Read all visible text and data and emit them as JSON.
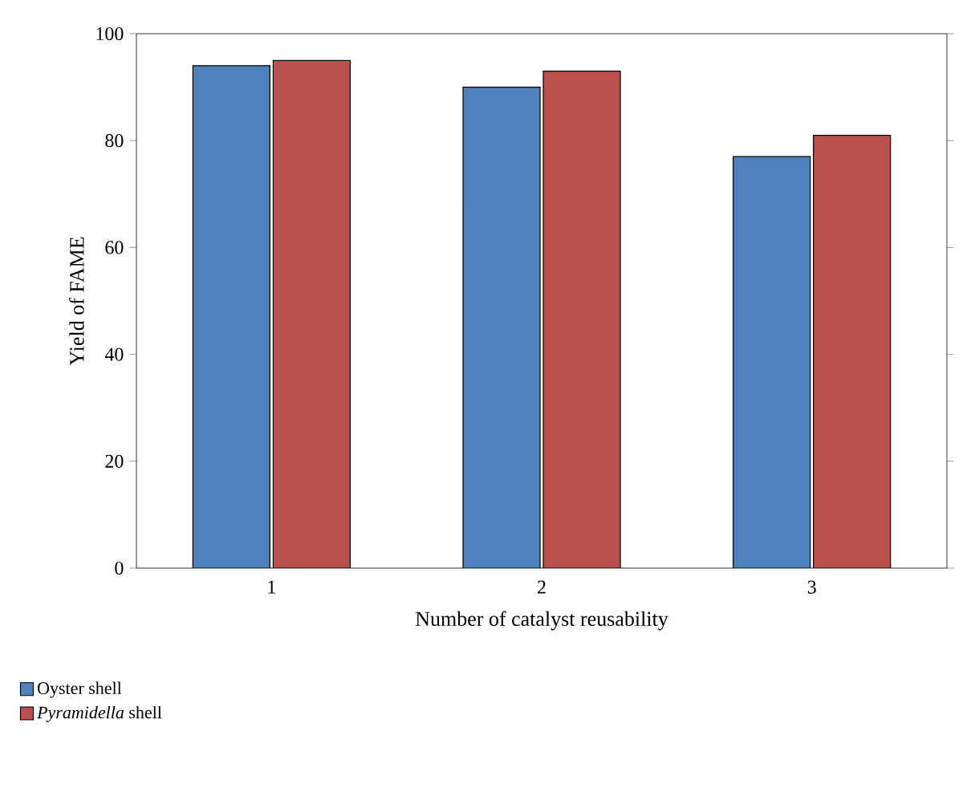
{
  "chart_data": {
    "type": "bar",
    "xlabel": "Number of catalyst reusability",
    "ylabel": "Yield of FAME",
    "categories": [
      "1",
      "2",
      "3"
    ],
    "series": [
      {
        "name": "Oyster shell",
        "color": "#4f81bd",
        "values": [
          94,
          90,
          77
        ]
      },
      {
        "name": "*Pyramidella* shell",
        "color": "#b9504d",
        "values": [
          95,
          93,
          81
        ]
      }
    ],
    "ylim": [
      0,
      100
    ],
    "yticks": [
      0,
      20,
      40,
      60,
      80,
      100
    ],
    "legend": "bottom left",
    "grid": false
  }
}
